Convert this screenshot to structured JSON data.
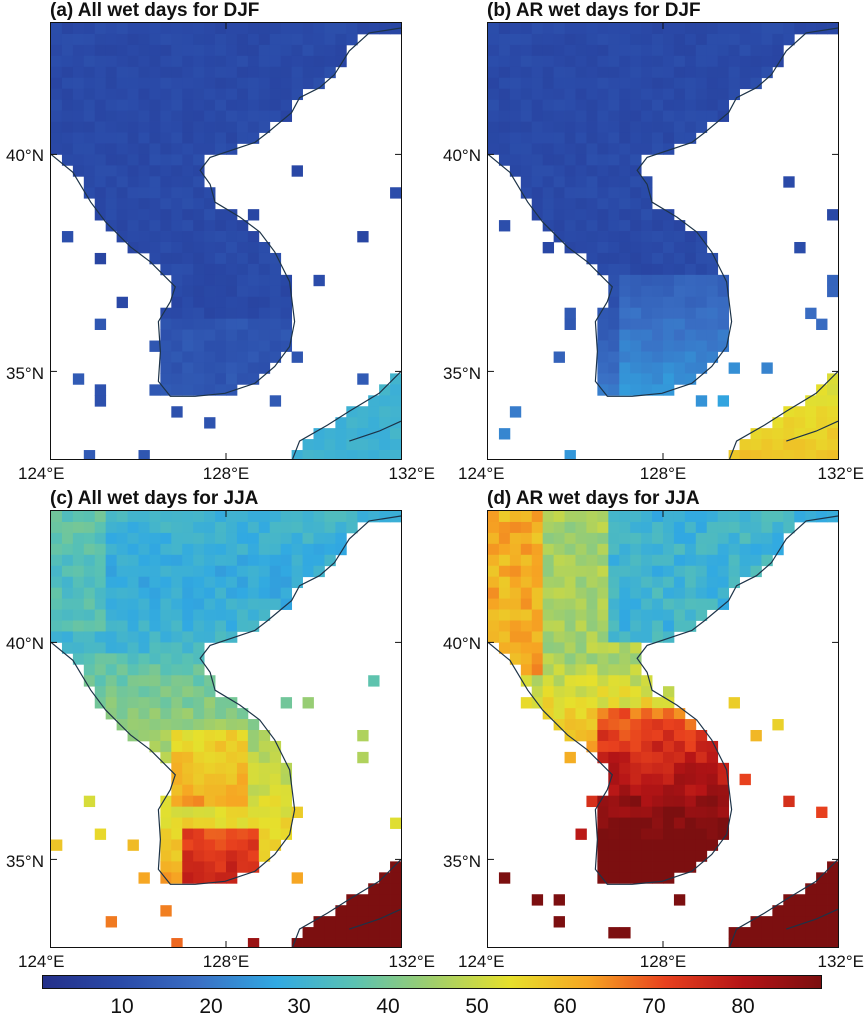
{
  "panels": [
    {
      "id": "a",
      "title": "(a) All wet days for DJF",
      "season": "DJF",
      "type": "All wet days",
      "intensity": 0
    },
    {
      "id": "b",
      "title": "(b) AR wet days for DJF",
      "season": "DJF",
      "type": "AR wet days",
      "intensity": 1
    },
    {
      "id": "c",
      "title": "(c) All wet days for JJA",
      "season": "JJA",
      "type": "All wet days",
      "intensity": 2
    },
    {
      "id": "d",
      "title": "(d) AR wet days for JJA",
      "season": "JJA",
      "type": "AR wet days",
      "intensity": 3
    }
  ],
  "axes": {
    "lat_ticks": [
      "40°N",
      "35°N"
    ],
    "lon_ticks": [
      "124°E",
      "128°E",
      "132°E"
    ],
    "lat_tick_values": [
      40,
      35
    ],
    "lon_tick_values": [
      124,
      128,
      132
    ],
    "lon_range": [
      124,
      132
    ],
    "lat_range": [
      33,
      43
    ]
  },
  "colorbar": {
    "labels": [
      "10",
      "20",
      "30",
      "40",
      "50",
      "60",
      "70",
      "80"
    ],
    "values": [
      10,
      20,
      30,
      40,
      50,
      60,
      70,
      80
    ],
    "range": [
      1,
      89
    ],
    "colormap": "jet",
    "colors": [
      "#24308a",
      "#2a4aa8",
      "#3a6fc4",
      "#31a9e2",
      "#5ac2b2",
      "#9fce6c",
      "#e6e02c",
      "#f6a623",
      "#e8411e",
      "#b41416",
      "#7c0f10"
    ]
  }
}
